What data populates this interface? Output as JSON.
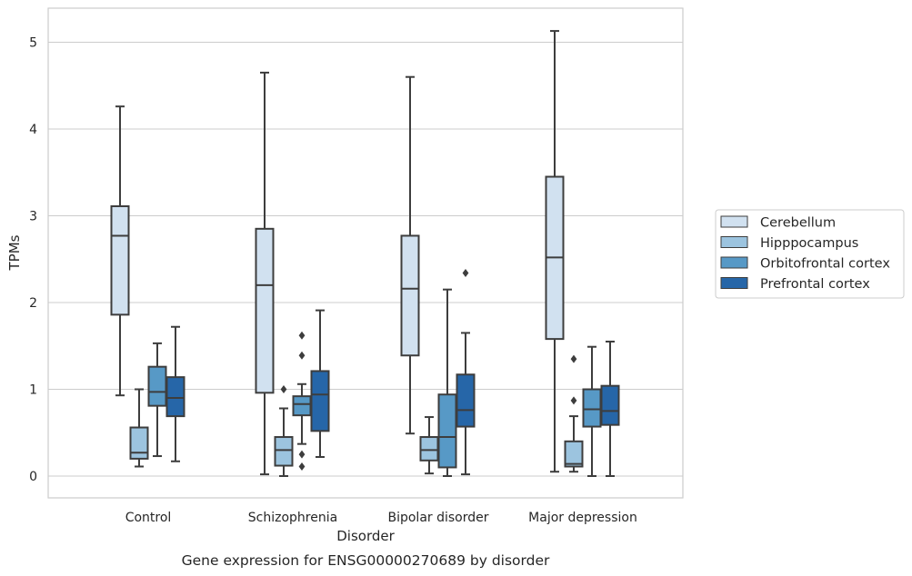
{
  "chart_data": {
    "type": "boxplot",
    "title": "",
    "caption": "Gene expression for ENSG00000270689 by disorder",
    "xlabel": "Disorder",
    "ylabel": "TPMs",
    "ylim": [
      -0.25,
      5.4
    ],
    "yticks": [
      0,
      1,
      2,
      3,
      4,
      5
    ],
    "grid": "horizontal",
    "legend_position": "right",
    "categories": [
      "Control",
      "Schizophrenia",
      "Bipolar disorder",
      "Major depression"
    ],
    "series": [
      {
        "name": "Cerebellum",
        "color": "#d1e1f0",
        "boxes": [
          {
            "whislo": 0.93,
            "q1": 1.86,
            "med": 2.77,
            "q3": 3.11,
            "whishi": 4.26,
            "fliers": []
          },
          {
            "whislo": 0.02,
            "q1": 0.96,
            "med": 2.2,
            "q3": 2.85,
            "whishi": 4.65,
            "fliers": []
          },
          {
            "whislo": 0.49,
            "q1": 1.39,
            "med": 2.16,
            "q3": 2.77,
            "whishi": 4.6,
            "fliers": []
          },
          {
            "whislo": 0.05,
            "q1": 1.58,
            "med": 2.52,
            "q3": 3.45,
            "whishi": 5.13,
            "fliers": []
          }
        ]
      },
      {
        "name": "Hipppocampus",
        "color": "#9cc4df",
        "boxes": [
          {
            "whislo": 0.11,
            "q1": 0.2,
            "med": 0.27,
            "q3": 0.56,
            "whishi": 1.0,
            "fliers": []
          },
          {
            "whislo": 0.0,
            "q1": 0.12,
            "med": 0.3,
            "q3": 0.45,
            "whishi": 0.78,
            "fliers": [
              1.0
            ]
          },
          {
            "whislo": 0.03,
            "q1": 0.18,
            "med": 0.3,
            "q3": 0.45,
            "whishi": 0.68,
            "fliers": []
          },
          {
            "whislo": 0.05,
            "q1": 0.11,
            "med": 0.14,
            "q3": 0.4,
            "whishi": 0.69,
            "fliers": [
              0.87,
              1.35
            ]
          }
        ]
      },
      {
        "name": "Orbitofrontal cortex",
        "color": "#5799c6",
        "boxes": [
          {
            "whislo": 0.23,
            "q1": 0.81,
            "med": 0.97,
            "q3": 1.26,
            "whishi": 1.53,
            "fliers": []
          },
          {
            "whislo": 0.37,
            "q1": 0.7,
            "med": 0.83,
            "q3": 0.92,
            "whishi": 1.06,
            "fliers": [
              0.11,
              0.25,
              1.39,
              1.62
            ]
          },
          {
            "whislo": 0.0,
            "q1": 0.1,
            "med": 0.45,
            "q3": 0.94,
            "whishi": 2.15,
            "fliers": []
          },
          {
            "whislo": 0.0,
            "q1": 0.57,
            "med": 0.77,
            "q3": 1.0,
            "whishi": 1.49,
            "fliers": []
          }
        ]
      },
      {
        "name": "Prefrontal cortex",
        "color": "#2666a8",
        "boxes": [
          {
            "whislo": 0.17,
            "q1": 0.69,
            "med": 0.9,
            "q3": 1.14,
            "whishi": 1.72,
            "fliers": []
          },
          {
            "whislo": 0.22,
            "q1": 0.52,
            "med": 0.94,
            "q3": 1.21,
            "whishi": 1.91,
            "fliers": []
          },
          {
            "whislo": 0.02,
            "q1": 0.57,
            "med": 0.76,
            "q3": 1.17,
            "whishi": 1.65,
            "fliers": [
              2.34
            ]
          },
          {
            "whislo": 0.0,
            "q1": 0.59,
            "med": 0.75,
            "q3": 1.04,
            "whishi": 1.55,
            "fliers": []
          }
        ]
      }
    ]
  }
}
